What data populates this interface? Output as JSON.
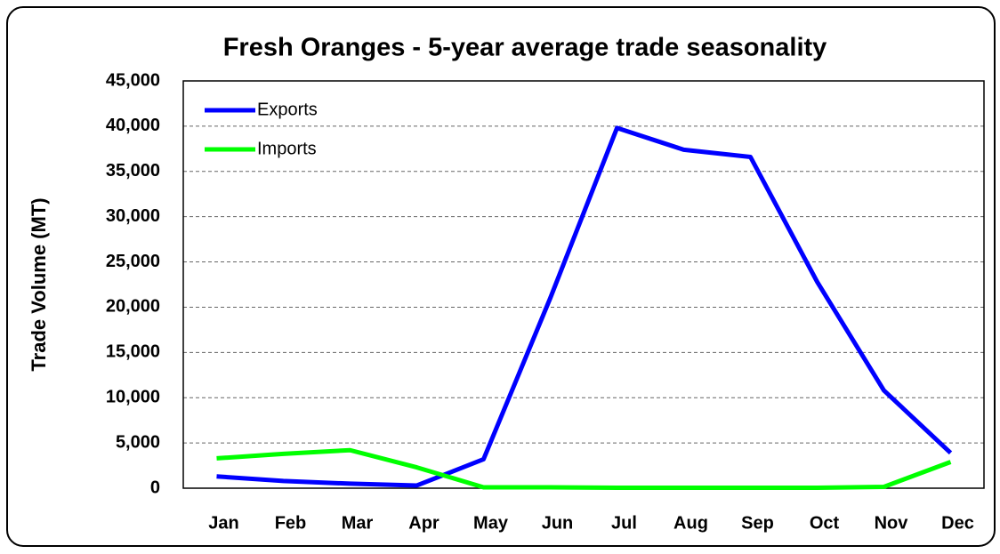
{
  "chart_data": {
    "type": "line",
    "title": "Fresh Oranges - 5-year average trade seasonality",
    "y_label": "Trade Volume (MT)",
    "categories": [
      "Jan",
      "Feb",
      "Mar",
      "Apr",
      "May",
      "Jun",
      "Jul",
      "Aug",
      "Sep",
      "Oct",
      "Nov",
      "Dec"
    ],
    "series": [
      {
        "name": "Exports",
        "color": "#0000ff",
        "values": [
          1300,
          800,
          500,
          300,
          3200,
          21000,
          39800,
          37400,
          36600,
          22800,
          10800,
          3900
        ]
      },
      {
        "name": "Imports",
        "color": "#00ff00",
        "values": [
          3300,
          3800,
          4200,
          2300,
          100,
          100,
          50,
          50,
          50,
          50,
          150,
          2900
        ]
      }
    ],
    "ylim": [
      0,
      45000
    ],
    "yticks": [
      0,
      {
        "value": 5000,
        "label": "5,000"
      },
      {
        "value": 10000,
        "label": "10,000"
      },
      {
        "value": 15000,
        "label": "15,000"
      },
      {
        "value": 20000,
        "label": "20,000"
      },
      {
        "value": 25000,
        "label": "25,000"
      },
      {
        "value": 30000,
        "label": "30,000"
      },
      {
        "value": 35000,
        "label": "35,000"
      },
      {
        "value": 40000,
        "label": "40,000"
      },
      {
        "value": 45000,
        "label": "45,000"
      }
    ],
    "grid": true,
    "legend": "upper left"
  }
}
